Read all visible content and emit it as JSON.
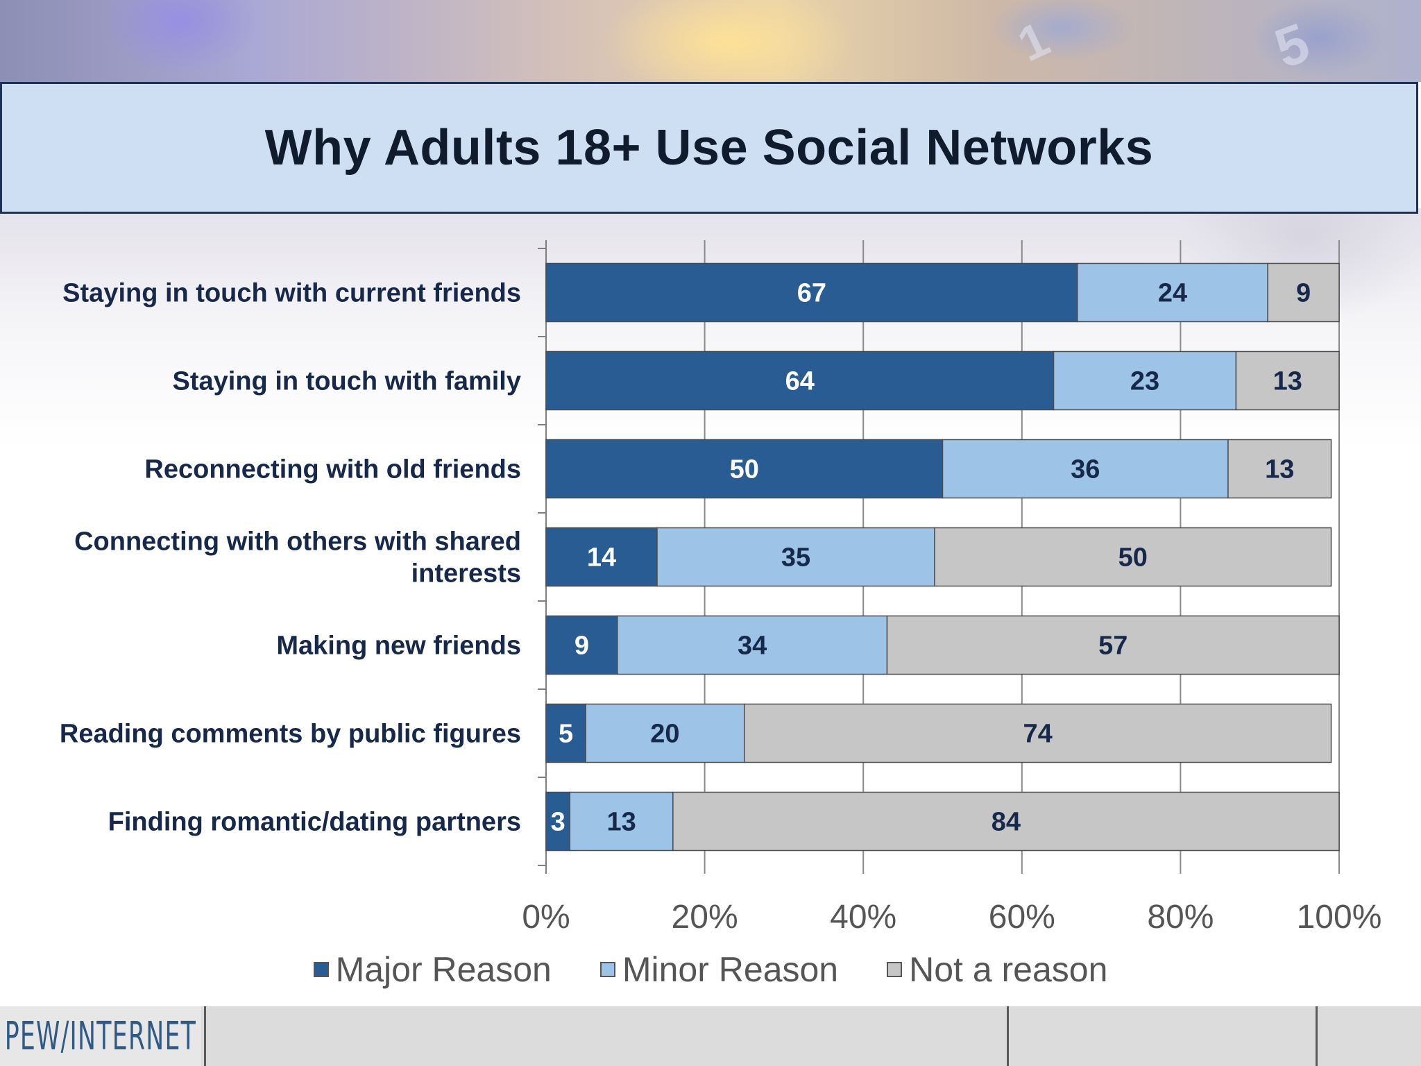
{
  "slide": {
    "title": "Why Adults 18+ Use Social Networks",
    "logo": "PEW/INTERNET"
  },
  "colors": {
    "major": "#2a5c94",
    "minor": "#9dc3e6",
    "not": "#c6c6c6",
    "axis": "#7f7f7f",
    "grid": "#8a8a8a",
    "title_band": "#cfdff3"
  },
  "chart_data": {
    "type": "bar",
    "orientation": "horizontal",
    "stacked": true,
    "title": "Why Adults 18+ Use Social Networks",
    "categories": [
      "Staying in touch with current friends",
      "Staying in touch with family",
      "Reconnecting with old friends",
      "Connecting with others with shared interests",
      "Making new friends",
      "Reading comments by public figures",
      "Finding romantic/dating partners"
    ],
    "series": [
      {
        "name": "Major Reason",
        "values": [
          67,
          64,
          50,
          14,
          9,
          5,
          3
        ]
      },
      {
        "name": "Minor Reason",
        "values": [
          24,
          23,
          36,
          35,
          34,
          20,
          13
        ]
      },
      {
        "name": "Not a reason",
        "values": [
          9,
          13,
          13,
          50,
          57,
          74,
          84
        ]
      }
    ],
    "x_ticks": [
      "0%",
      "20%",
      "40%",
      "60%",
      "80%",
      "100%"
    ],
    "xlim": [
      0,
      100
    ],
    "grid": true,
    "legend": "bottom"
  }
}
